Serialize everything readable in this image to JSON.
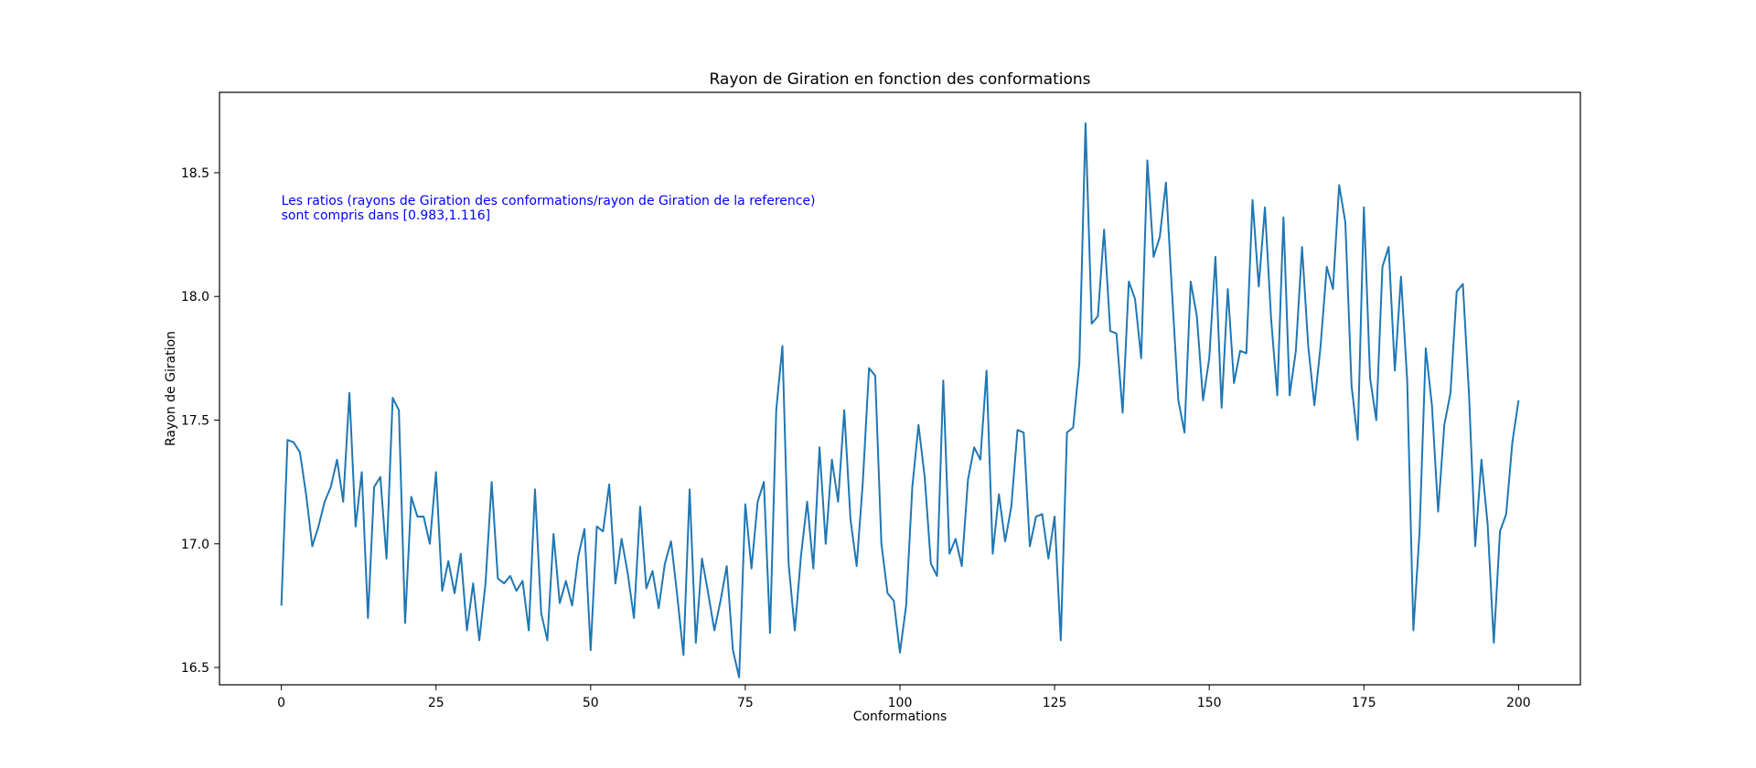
{
  "chart_data": {
    "type": "line",
    "title": "Rayon de Giration en fonction des conformations",
    "xlabel": "Conformations",
    "ylabel": "Rayon de Giration",
    "xlim": [
      -10,
      210
    ],
    "ylim": [
      16.43,
      18.825
    ],
    "xticks": [
      0,
      25,
      50,
      75,
      100,
      125,
      150,
      175,
      200
    ],
    "xtick_labels": [
      "0",
      "25",
      "50",
      "75",
      "100",
      "125",
      "150",
      "175",
      "200"
    ],
    "yticks": [
      16.5,
      17.0,
      17.5,
      18.0,
      18.5
    ],
    "ytick_labels": [
      "16.5",
      "17.0",
      "17.5",
      "18.0",
      "18.5"
    ],
    "grid": false,
    "legend": "none",
    "series_color": "#1f77b4",
    "annotation": {
      "lines": [
        "Les ratios (rayons de Giration des conformations/rayon de Giration de la reference)",
        "sont compris dans [0.983,1.116]"
      ],
      "color": "#0000ff",
      "x": 0,
      "y": 18.37
    },
    "x_start": 0,
    "x_step": 1,
    "series": [
      {
        "values": [
          16.75,
          17.42,
          17.41,
          17.37,
          17.2,
          16.99,
          17.07,
          17.17,
          17.23,
          17.34,
          17.17,
          17.61,
          17.07,
          17.29,
          16.7,
          17.23,
          17.27,
          16.94,
          17.59,
          17.54,
          16.68,
          17.19,
          17.11,
          17.11,
          17.0,
          17.29,
          16.81,
          16.93,
          16.8,
          16.96,
          16.65,
          16.84,
          16.61,
          16.84,
          17.25,
          16.86,
          16.84,
          16.87,
          16.81,
          16.85,
          16.65,
          17.22,
          16.72,
          16.61,
          17.04,
          16.76,
          16.85,
          16.75,
          16.95,
          17.06,
          16.57,
          17.07,
          17.05,
          17.24,
          16.84,
          17.02,
          16.88,
          16.7,
          17.15,
          16.82,
          16.89,
          16.74,
          16.92,
          17.01,
          16.79,
          16.55,
          17.22,
          16.6,
          16.94,
          16.8,
          16.65,
          16.77,
          16.91,
          16.57,
          16.46,
          17.16,
          16.9,
          17.17,
          17.25,
          16.64,
          17.54,
          17.8,
          16.92,
          16.65,
          16.95,
          17.17,
          16.9,
          17.39,
          17.0,
          17.34,
          17.17,
          17.54,
          17.1,
          16.91,
          17.25,
          17.71,
          17.68,
          17.0,
          16.8,
          16.77,
          16.56,
          16.75,
          17.23,
          17.48,
          17.27,
          16.92,
          16.87,
          17.66,
          16.96,
          17.02,
          16.91,
          17.26,
          17.39,
          17.34,
          17.7,
          16.96,
          17.2,
          17.01,
          17.15,
          17.46,
          17.45,
          16.99,
          17.11,
          17.12,
          16.94,
          17.11,
          16.61,
          17.45,
          17.47,
          17.73,
          18.7,
          17.89,
          17.92,
          18.27,
          17.86,
          17.85,
          17.53,
          18.06,
          17.99,
          17.75,
          18.55,
          18.16,
          18.24,
          18.46,
          18.01,
          17.58,
          17.45,
          18.06,
          17.92,
          17.58,
          17.75,
          18.16,
          17.55,
          18.03,
          17.65,
          17.78,
          17.77,
          18.39,
          18.04,
          18.36,
          17.91,
          17.6,
          18.32,
          17.6,
          17.78,
          18.2,
          17.8,
          17.56,
          17.8,
          18.12,
          18.03,
          18.45,
          18.3,
          17.64,
          17.42,
          18.36,
          17.67,
          17.5,
          18.12,
          18.2,
          17.7,
          18.08,
          17.66,
          16.65,
          17.05,
          17.79,
          17.56,
          17.13,
          17.48,
          17.61,
          18.02,
          18.05,
          17.6,
          16.99,
          17.34,
          17.08,
          16.6,
          17.05,
          17.12,
          17.41,
          17.58
        ]
      }
    ]
  }
}
